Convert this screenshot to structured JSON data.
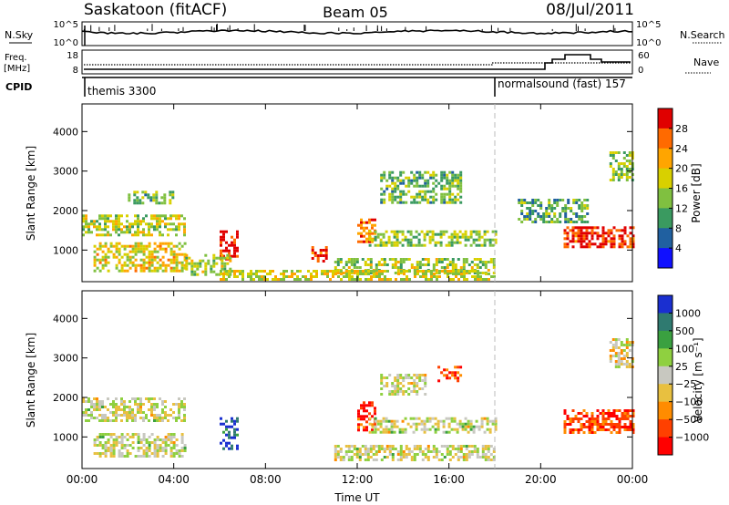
{
  "header": {
    "station": "Saskatoon (fitACF)",
    "beam": "Beam 05",
    "date": "08/Jul/2011"
  },
  "status_panels": {
    "nsky": {
      "left_label": "N.Sky",
      "left_ticks": [
        "10^5",
        "10^0"
      ],
      "right_label": "N.Search",
      "right_ticks": [
        "10^5",
        "10^0"
      ]
    },
    "freq": {
      "left_label_line1": "Freq.",
      "left_label_line2": "[MHz]",
      "left_ticks": [
        "18",
        "8"
      ],
      "right_label": "Nave",
      "right_ticks": [
        "60",
        "0"
      ]
    },
    "cpid": {
      "label": "CPID",
      "segments": [
        {
          "text": "themis 3300",
          "start_ut": 0.0
        },
        {
          "text": "normalsound (fast) 157",
          "start_ut": 18.0
        }
      ]
    }
  },
  "chart_data": [
    {
      "type": "heatmap",
      "name": "power",
      "ylabel": "Slant Range [km]",
      "yticks": [
        "4000",
        "3000",
        "2000",
        "1000"
      ],
      "ytick_values": [
        4000,
        3000,
        2000,
        1000
      ],
      "ylim": [
        200,
        4700
      ],
      "xlim_hours": [
        0,
        24
      ],
      "colorbar": {
        "label": "Power [dB]",
        "ticks": [
          "28",
          "24",
          "20",
          "16",
          "12",
          "8",
          "4"
        ],
        "colors": [
          "#e00000",
          "#ff6a00",
          "#ffa500",
          "#d8d000",
          "#80c040",
          "#3a9a60",
          "#2060a0",
          "#1010ff"
        ]
      },
      "regions": [
        {
          "t": [
            0.0,
            4.5
          ],
          "r": [
            1400,
            1900
          ],
          "level": 0.5
        },
        {
          "t": [
            0.5,
            4.5
          ],
          "r": [
            500,
            1200
          ],
          "level": 0.6
        },
        {
          "t": [
            2.0,
            4.0
          ],
          "r": [
            2200,
            2500
          ],
          "level": 0.4
        },
        {
          "t": [
            6.0,
            6.8
          ],
          "r": [
            800,
            1500
          ],
          "level": 0.95
        },
        {
          "t": [
            4.5,
            6.5
          ],
          "r": [
            400,
            900
          ],
          "level": 0.5
        },
        {
          "t": [
            10.0,
            10.6
          ],
          "r": [
            700,
            1100
          ],
          "level": 0.9
        },
        {
          "t": [
            12.0,
            12.8
          ],
          "r": [
            1200,
            1800
          ],
          "level": 0.8
        },
        {
          "t": [
            12.5,
            18.0
          ],
          "r": [
            1100,
            1500
          ],
          "level": 0.45
        },
        {
          "t": [
            11.0,
            18.0
          ],
          "r": [
            400,
            800
          ],
          "level": 0.5
        },
        {
          "t": [
            13.0,
            16.5
          ],
          "r": [
            2200,
            3000
          ],
          "level": 0.4
        },
        {
          "t": [
            21.0,
            24.0
          ],
          "r": [
            1100,
            1600
          ],
          "level": 0.9
        },
        {
          "t": [
            19.0,
            22.0
          ],
          "r": [
            1700,
            2300
          ],
          "level": 0.35
        },
        {
          "t": [
            23.0,
            24.0
          ],
          "r": [
            2800,
            3500
          ],
          "level": 0.45
        },
        {
          "t": [
            6.0,
            18.0
          ],
          "r": [
            250,
            500
          ],
          "level": 0.55
        }
      ]
    },
    {
      "type": "heatmap",
      "name": "velocity",
      "ylabel": "Slant Range [km]",
      "yticks": [
        "4000",
        "3000",
        "2000",
        "1000"
      ],
      "ytick_values": [
        4000,
        3000,
        2000,
        1000
      ],
      "ylim": [
        200,
        4700
      ],
      "xlim_hours": [
        0,
        24
      ],
      "xticks": [
        "00:00",
        "04:00",
        "08:00",
        "12:00",
        "16:00",
        "20:00",
        "00:00"
      ],
      "xtick_hours": [
        0,
        4,
        8,
        12,
        16,
        20,
        24
      ],
      "xlabel": "Time UT",
      "colorbar": {
        "label": "Velocity [m s⁻¹]",
        "ticks": [
          "1000",
          "500",
          "100",
          "25",
          "−25",
          "−100",
          "−500",
          "−1000"
        ],
        "colors": [
          "#1a2fd0",
          "#2f7a70",
          "#3aa040",
          "#8fd040",
          "#c8c8c0",
          "#e8c040",
          "#ff8c00",
          "#ff4000",
          "#ff0000"
        ]
      },
      "regions": [
        {
          "t": [
            0.0,
            4.5
          ],
          "r": [
            1400,
            2000
          ],
          "level": 0.5
        },
        {
          "t": [
            0.5,
            4.5
          ],
          "r": [
            500,
            1100
          ],
          "level": 0.5
        },
        {
          "t": [
            6.0,
            6.8
          ],
          "r": [
            700,
            1500
          ],
          "level": 0.1
        },
        {
          "t": [
            12.0,
            12.8
          ],
          "r": [
            1200,
            1900
          ],
          "level": 0.9
        },
        {
          "t": [
            15.5,
            16.5
          ],
          "r": [
            2400,
            2800
          ],
          "level": 0.85
        },
        {
          "t": [
            13.0,
            15.0
          ],
          "r": [
            2100,
            2600
          ],
          "level": 0.5
        },
        {
          "t": [
            21.0,
            24.0
          ],
          "r": [
            1100,
            1700
          ],
          "level": 0.85
        },
        {
          "t": [
            11.0,
            18.0
          ],
          "r": [
            400,
            800
          ],
          "level": 0.5
        },
        {
          "t": [
            23.0,
            24.0
          ],
          "r": [
            2800,
            3500
          ],
          "level": 0.55
        },
        {
          "t": [
            12.5,
            18.0
          ],
          "r": [
            1100,
            1500
          ],
          "level": 0.5
        }
      ]
    }
  ]
}
